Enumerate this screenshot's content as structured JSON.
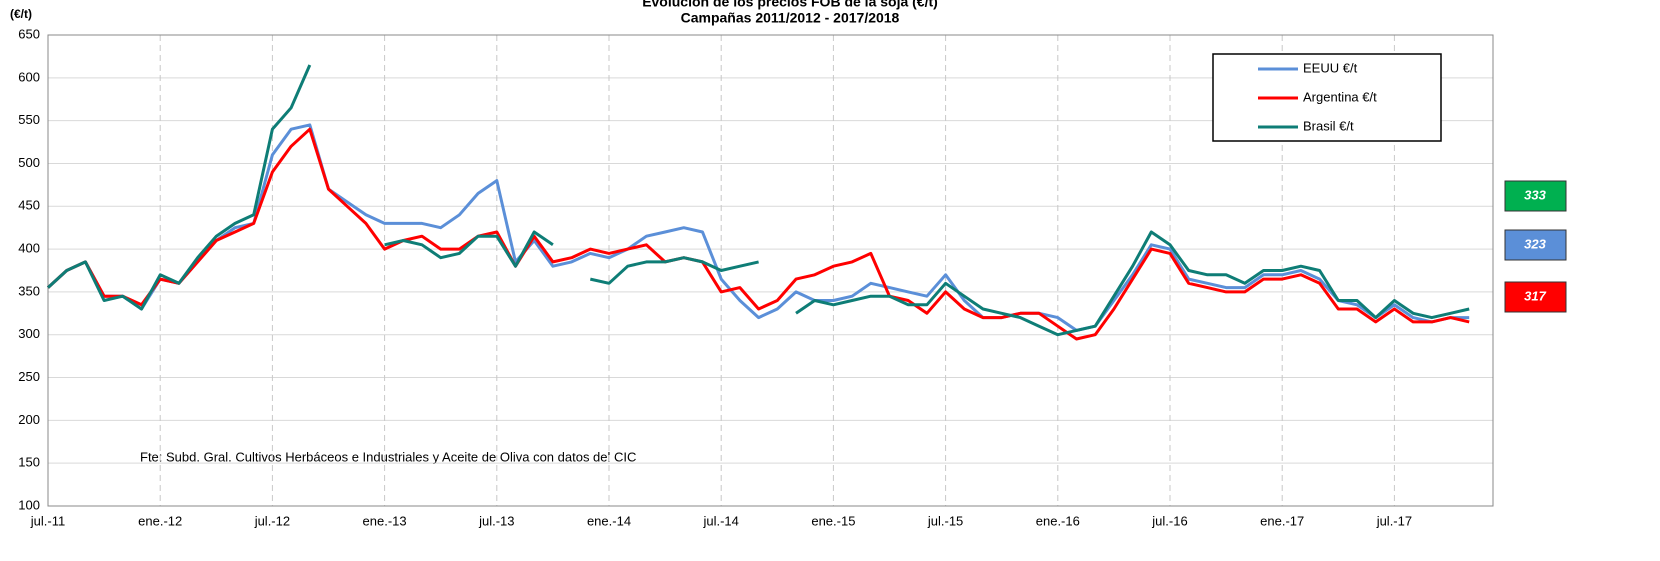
{
  "chart_data": {
    "type": "line",
    "title": "Evolución de los precios FOB de la soja (€/t)",
    "subtitle": "Campañas 2011/2012 - 2017/2018",
    "y_label": "(€/t)",
    "annotation": "Fte: Subd. Gral. Cultivos Herbáceos e Industriales y Aceite de Oliva con datos del CIC",
    "categories": [
      "jul.-11",
      null,
      null,
      null,
      null,
      null,
      "ene.-12",
      null,
      null,
      null,
      null,
      null,
      "jul.-12",
      null,
      null,
      null,
      null,
      null,
      "ene.-13",
      null,
      null,
      null,
      null,
      null,
      "jul.-13",
      null,
      null,
      null,
      null,
      null,
      "ene.-14",
      null,
      null,
      null,
      null,
      null,
      "jul.-14",
      null,
      null,
      null,
      null,
      null,
      "ene.-15",
      null,
      null,
      null,
      null,
      null,
      "jul.-15",
      null,
      null,
      null,
      null,
      null,
      "ene.-16",
      null,
      null,
      null,
      null,
      null,
      "jul.-16",
      null,
      null,
      null,
      null,
      null,
      "ene.-17",
      null,
      null,
      null,
      null,
      null,
      "jul.-17",
      null,
      null,
      null,
      null
    ],
    "series": [
      {
        "name": "EEUU €/t",
        "color": "#5b8fd8",
        "values": [
          355,
          375,
          385,
          345,
          345,
          330,
          365,
          360,
          385,
          410,
          425,
          430,
          510,
          540,
          545,
          470,
          455,
          440,
          430,
          430,
          430,
          425,
          440,
          465,
          480,
          385,
          410,
          380,
          385,
          395,
          390,
          400,
          415,
          420,
          425,
          420,
          365,
          340,
          320,
          330,
          350,
          340,
          340,
          345,
          360,
          355,
          350,
          345,
          370,
          340,
          320,
          320,
          325,
          325,
          320,
          305,
          310,
          340,
          370,
          405,
          400,
          365,
          360,
          355,
          355,
          370,
          370,
          375,
          365,
          340,
          335,
          320,
          335,
          320,
          315,
          320,
          320
        ]
      },
      {
        "name": "Argentina €/t",
        "color": "#ff0000",
        "values": [
          355,
          375,
          385,
          345,
          345,
          335,
          365,
          360,
          385,
          410,
          420,
          430,
          490,
          520,
          540,
          470,
          450,
          430,
          400,
          410,
          415,
          400,
          400,
          415,
          420,
          380,
          415,
          385,
          390,
          400,
          395,
          400,
          405,
          385,
          390,
          385,
          350,
          355,
          330,
          340,
          365,
          370,
          380,
          385,
          395,
          345,
          340,
          325,
          350,
          330,
          320,
          320,
          325,
          325,
          310,
          295,
          300,
          330,
          365,
          400,
          395,
          360,
          355,
          350,
          350,
          365,
          365,
          370,
          360,
          330,
          330,
          315,
          330,
          315,
          315,
          320,
          315
        ]
      },
      {
        "name": "Brasil €/t",
        "color": "#0e7d76",
        "values": [
          355,
          375,
          385,
          340,
          345,
          330,
          370,
          360,
          390,
          415,
          430,
          440,
          540,
          565,
          615,
          null,
          null,
          null,
          405,
          410,
          405,
          390,
          395,
          415,
          415,
          380,
          420,
          405,
          null,
          365,
          360,
          380,
          385,
          385,
          390,
          385,
          375,
          380,
          385,
          null,
          325,
          340,
          335,
          340,
          345,
          345,
          335,
          335,
          360,
          345,
          330,
          325,
          320,
          310,
          300,
          305,
          310,
          345,
          380,
          420,
          405,
          375,
          370,
          370,
          360,
          375,
          375,
          380,
          375,
          340,
          340,
          320,
          340,
          325,
          320,
          325,
          330
        ]
      }
    ],
    "ylim": [
      100,
      650
    ],
    "yticks": [
      100,
      150,
      200,
      250,
      300,
      350,
      400,
      450,
      500,
      550,
      600,
      650
    ],
    "grid": true,
    "legend": "upper right",
    "badges": [
      {
        "label": "333",
        "color": "#00b050"
      },
      {
        "label": "323",
        "color": "#5b8fd8"
      },
      {
        "label": "317",
        "color": "#ff0000"
      }
    ]
  }
}
